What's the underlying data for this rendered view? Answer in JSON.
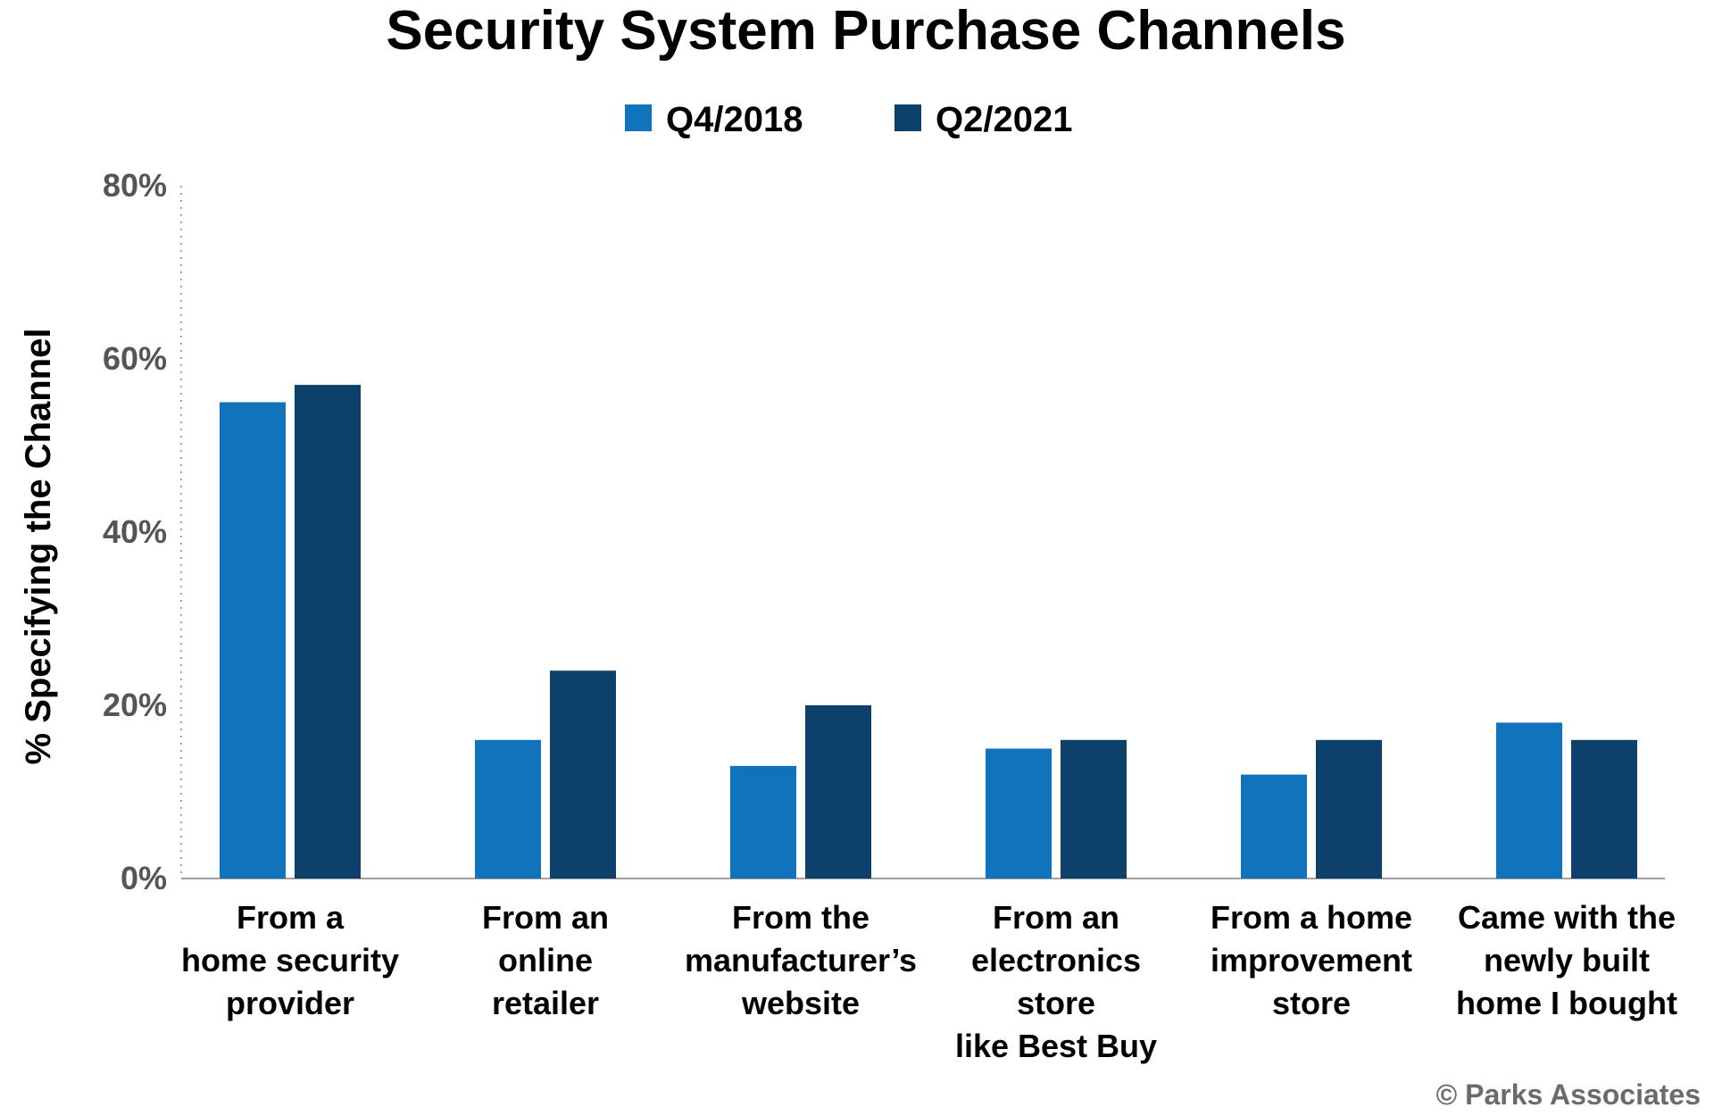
{
  "colors": {
    "series_1": "#1173bb",
    "series_2": "#0d406b",
    "axis": "#a0a0a0",
    "tick_text": "#555555",
    "credit": "#6b6b6b"
  },
  "credit": "© Parks Associates",
  "chart_data": {
    "type": "bar",
    "title": "Security System Purchase Channels",
    "xlabel": "",
    "ylabel": "% Specifying the Channel",
    "ylim": [
      0,
      80
    ],
    "yticks": [
      0,
      20,
      40,
      60,
      80
    ],
    "ytick_labels": [
      "0%",
      "20%",
      "40%",
      "60%",
      "80%"
    ],
    "legend_position": "top-center",
    "grid": false,
    "categories": [
      [
        "From a",
        "home security",
        "provider"
      ],
      [
        "From an",
        "online",
        "retailer"
      ],
      [
        "From the",
        "manufacturer’s",
        "website"
      ],
      [
        "From an",
        "electronics",
        "store",
        "like Best Buy"
      ],
      [
        "From a home",
        "improvement",
        "store"
      ],
      [
        "Came with the",
        "newly built",
        "home I bought"
      ]
    ],
    "series": [
      {
        "name": "Q4/2018",
        "values": [
          55,
          16,
          13,
          15,
          12,
          18
        ]
      },
      {
        "name": "Q2/2021",
        "values": [
          57,
          24,
          20,
          16,
          16,
          16
        ]
      }
    ]
  }
}
